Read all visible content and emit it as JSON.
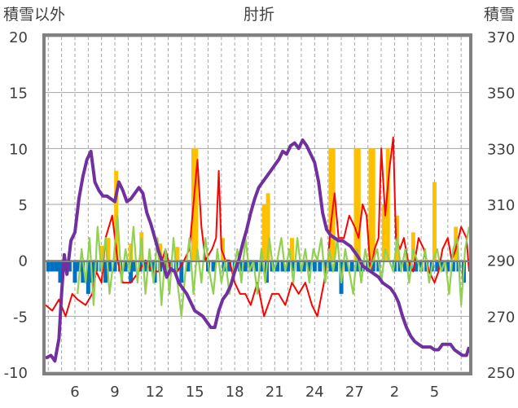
{
  "chart_data": {
    "type": "line",
    "title": "肘折",
    "y_left_label": "積雪以外",
    "y_right_label": "積雪",
    "ylim_left": [
      -10,
      20
    ],
    "ylim_right": [
      250,
      370
    ],
    "yticks_left": [
      "20",
      "15",
      "10",
      "5",
      "0",
      "-5",
      "-10"
    ],
    "yticks_right": [
      "370",
      "350",
      "330",
      "310",
      "290",
      "270",
      "250"
    ],
    "x_tick_labels": [
      "6",
      "9",
      "12",
      "15",
      "18",
      "21",
      "24",
      "27",
      "2",
      "5"
    ],
    "grid": true,
    "colors": {
      "frame": "#808080",
      "grid": "#a6a6a6",
      "precip": "#ffc000",
      "negative": "#0070c0",
      "red": "#ff0000",
      "green": "#92d050",
      "purple": "#7030a0"
    },
    "series": [
      {
        "axis": "left",
        "color": "#ff0000",
        "x": [
          3.8,
          4.3,
          4.8,
          5.3,
          5.8,
          6.2,
          6.8,
          7.3,
          7.6,
          8.0,
          8.3,
          8.8,
          9.2,
          9.6,
          10.2,
          10.8,
          11.3,
          11.8,
          12.3,
          12.8,
          13.2,
          13.7,
          14.2,
          14.6,
          14.9,
          15.2,
          15.5,
          15.8,
          16.3,
          16.6,
          16.8,
          17.0,
          17.3,
          17.6,
          18.0,
          18.4,
          18.8,
          19.2,
          19.7,
          20.2,
          20.8,
          21.3,
          21.8,
          22.3,
          22.8,
          23.3,
          23.8,
          24.2,
          24.7,
          25.0,
          25.2,
          25.5,
          25.8,
          26.2,
          26.6,
          27.0,
          27.3,
          27.6,
          27.9,
          28.2,
          28.5,
          28.8,
          29.0,
          29.3,
          29.6,
          29.9,
          30.1,
          30.4,
          30.7,
          31.0,
          31.4,
          31.8,
          32.2,
          32.6,
          33.0,
          33.3,
          33.6,
          34.0,
          34.3,
          34.6,
          35.0,
          35.4,
          35.6
        ],
        "y": [
          -4,
          -4.5,
          -3.5,
          -5,
          -3,
          -3.5,
          -4,
          -3,
          -1,
          -2,
          2,
          4,
          0,
          -2,
          -2,
          -1,
          0,
          -1,
          -1,
          1,
          -1,
          -1,
          0,
          1,
          5,
          9,
          3,
          0,
          1,
          2,
          8,
          1,
          0,
          0,
          -2,
          -3,
          -3,
          -4,
          -2,
          -5,
          -3,
          -3,
          -4,
          -2,
          -3,
          -2,
          -4,
          -5,
          -2,
          0,
          3,
          6,
          2,
          2,
          4,
          3,
          2,
          5,
          4,
          -1,
          1,
          2,
          10,
          4,
          8,
          11,
          2,
          1,
          2,
          0,
          -1,
          2,
          1,
          -1,
          -2,
          -1,
          1,
          2,
          0,
          1,
          3,
          2,
          -1
        ]
      },
      {
        "axis": "left",
        "color": "#92d050",
        "x": [
          6.2,
          6.5,
          6.8,
          7.1,
          7.4,
          7.7,
          8.0,
          8.3,
          8.6,
          8.9,
          9.2,
          9.5,
          9.8,
          10.1,
          10.4,
          10.7,
          11.0,
          11.3,
          11.6,
          11.9,
          12.2,
          12.5,
          12.8,
          13.1,
          13.4,
          13.7,
          14.0,
          14.3,
          14.6,
          14.9,
          15.2,
          15.5,
          15.8,
          16.1,
          16.4,
          16.7,
          17.0,
          17.3,
          17.6,
          17.9,
          18.2,
          18.5,
          18.8,
          19.1,
          19.4,
          19.7,
          20.0,
          20.3,
          20.6,
          20.9,
          21.2,
          21.5,
          21.8,
          22.1,
          22.4,
          22.7,
          23.0,
          23.3,
          23.6,
          23.9,
          24.2,
          24.5,
          24.8,
          25.1,
          25.4,
          25.7,
          26.0,
          26.3,
          26.6,
          26.9,
          27.2,
          27.5,
          27.8,
          28.1,
          28.4,
          28.7,
          29.0,
          29.3,
          29.6,
          29.9,
          30.2,
          30.5,
          30.8,
          31.1,
          31.4,
          31.7,
          32.0,
          32.3,
          32.6,
          32.9,
          33.2,
          33.5,
          33.8,
          34.1,
          34.4,
          34.7,
          35.0,
          35.3,
          35.6
        ],
        "y": [
          -3,
          1,
          -2,
          2,
          -4,
          3,
          -1,
          2,
          -3,
          0,
          4,
          -2,
          1,
          -1,
          3,
          -2,
          2,
          -3,
          1,
          -2,
          2,
          -4,
          1,
          -3,
          2,
          -2,
          -5,
          -1,
          2,
          -3,
          1,
          -2,
          2,
          -1,
          -3,
          1,
          -2,
          0,
          -3,
          -1,
          1,
          -2,
          2,
          -1,
          0,
          -3,
          1,
          -2,
          2,
          -1,
          0,
          2,
          -1,
          1,
          -2,
          2,
          -1,
          1,
          -2,
          1,
          0,
          2,
          -2,
          1,
          -1,
          2,
          -2,
          1,
          -1,
          -3,
          1,
          -2,
          1,
          -1,
          0,
          1,
          -2,
          1,
          0,
          -1,
          2,
          -1,
          1,
          -2,
          1,
          0,
          -1,
          1,
          -2,
          0,
          1,
          -1,
          0,
          -3,
          1,
          2,
          -4,
          1,
          3
        ]
      },
      {
        "axis": "right",
        "color": "#7030a0",
        "x": [
          3.8,
          4.2,
          4.5,
          4.8,
          5.0,
          5.2,
          5.4,
          5.7,
          6.0,
          6.3,
          6.6,
          6.9,
          7.2,
          7.5,
          7.8,
          8.1,
          8.4,
          8.7,
          9.0,
          9.3,
          9.6,
          9.9,
          10.2,
          10.5,
          10.8,
          11.1,
          11.4,
          11.7,
          12.0,
          12.3,
          12.6,
          12.9,
          13.2,
          13.5,
          13.8,
          14.1,
          14.4,
          14.7,
          15.0,
          15.3,
          15.6,
          15.9,
          16.2,
          16.5,
          16.8,
          17.1,
          17.4,
          17.7,
          18.0,
          18.3,
          18.6,
          18.9,
          19.2,
          19.5,
          19.8,
          20.1,
          20.4,
          20.7,
          21.0,
          21.3,
          21.6,
          21.9,
          22.2,
          22.5,
          22.8,
          23.1,
          23.4,
          23.7,
          24.0,
          24.3,
          24.6,
          24.9,
          25.2,
          25.5,
          25.8,
          26.1,
          26.4,
          26.7,
          27.0,
          27.3,
          27.6,
          27.9,
          28.2,
          28.5,
          28.8,
          29.1,
          29.4,
          29.7,
          30.0,
          30.3,
          30.6,
          30.9,
          31.2,
          31.5,
          31.8,
          32.1,
          32.4,
          32.7,
          33.0,
          33.3,
          33.6,
          33.9,
          34.2,
          34.5,
          34.8,
          35.1,
          35.4,
          35.6
        ],
        "y": [
          255,
          256,
          254,
          262,
          278,
          292,
          285,
          297,
          300,
          312,
          320,
          326,
          329,
          318,
          315,
          313,
          313,
          312,
          311,
          318,
          315,
          311,
          312,
          314,
          316,
          314,
          307,
          303,
          298,
          293,
          289,
          284,
          287,
          286,
          282,
          280,
          278,
          275,
          272,
          271,
          270,
          268,
          266,
          266,
          272,
          276,
          278,
          281,
          286,
          290,
          296,
          301,
          307,
          312,
          316,
          318,
          320,
          322,
          324,
          326,
          329,
          328,
          331,
          332,
          330,
          333,
          331,
          328,
          325,
          318,
          307,
          301,
          299,
          298,
          297,
          297,
          296,
          295,
          293,
          291,
          288,
          287,
          286,
          285,
          284,
          282,
          281,
          280,
          278,
          275,
          270,
          266,
          263,
          261,
          260,
          259,
          259,
          259,
          258,
          258,
          260,
          260,
          260,
          258,
          257,
          256,
          256,
          259
        ]
      }
    ]
  }
}
